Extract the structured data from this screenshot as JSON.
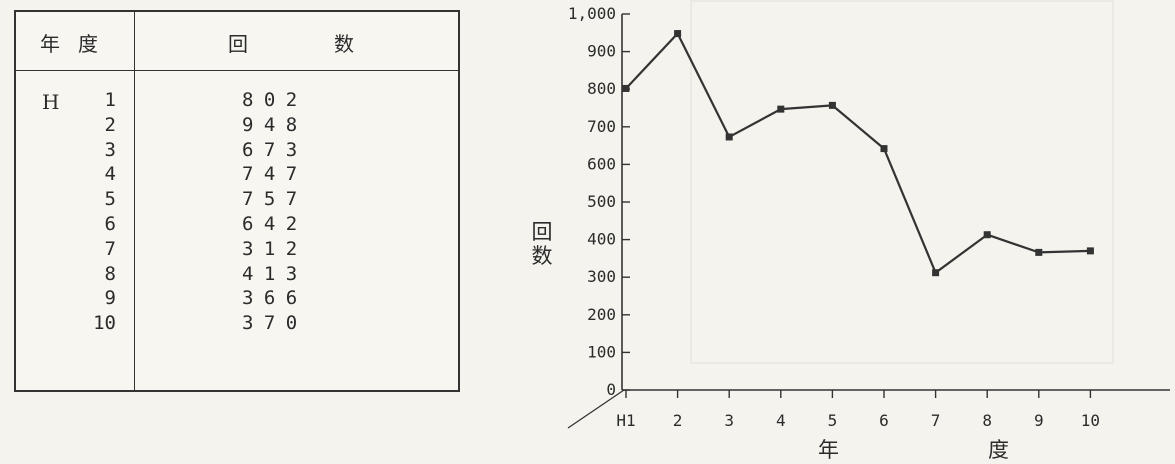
{
  "table": {
    "header_year": "年度",
    "header_count": "回数",
    "era": "H",
    "rows": [
      {
        "year": "1",
        "count": "802"
      },
      {
        "year": "2",
        "count": "948"
      },
      {
        "year": "3",
        "count": "673"
      },
      {
        "year": "4",
        "count": "747"
      },
      {
        "year": "5",
        "count": "757"
      },
      {
        "year": "6",
        "count": "642"
      },
      {
        "year": "7",
        "count": "312"
      },
      {
        "year": "8",
        "count": "413"
      },
      {
        "year": "9",
        "count": "366"
      },
      {
        "year": "10",
        "count": "370"
      }
    ]
  },
  "chart_data": {
    "type": "line",
    "title": "",
    "xlabel": "年度",
    "ylabel": "回数",
    "categories": [
      "H1",
      "2",
      "3",
      "4",
      "5",
      "6",
      "7",
      "8",
      "9",
      "10"
    ],
    "series": [
      {
        "values": [
          802,
          948,
          673,
          747,
          757,
          642,
          312,
          413,
          366,
          370
        ]
      }
    ],
    "ylim": [
      0,
      1000
    ],
    "yticks": [
      "0",
      "100",
      "200",
      "300",
      "400",
      "500",
      "600",
      "700",
      "800",
      "900",
      "1,000"
    ],
    "grid": false,
    "legend": "none",
    "line_color": "#333333"
  }
}
